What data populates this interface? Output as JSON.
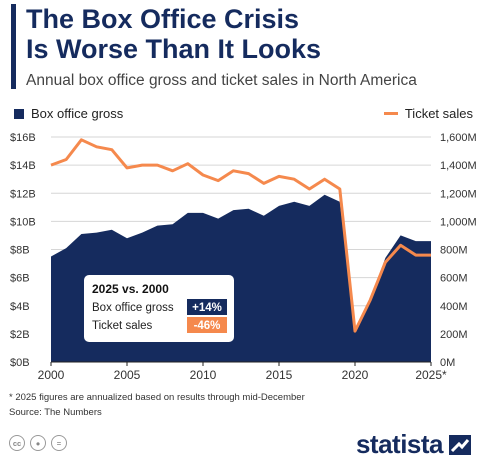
{
  "header": {
    "title_line1": "The Box Office Crisis",
    "title_line2": "Is Worse Than It Looks",
    "subtitle": "Annual box office gross and ticket sales in North America"
  },
  "legend": {
    "gross": "Box office gross",
    "tickets": "Ticket sales"
  },
  "chart_data": {
    "type": "area+line",
    "x": [
      2000,
      2001,
      2002,
      2003,
      2004,
      2005,
      2006,
      2007,
      2008,
      2009,
      2010,
      2011,
      2012,
      2013,
      2014,
      2015,
      2016,
      2017,
      2018,
      2019,
      2020,
      2021,
      2022,
      2023,
      2024,
      2025
    ],
    "series": [
      {
        "name": "Box office gross",
        "axis": "left",
        "unit": "USD",
        "values": [
          7.5,
          8.1,
          9.1,
          9.2,
          9.4,
          8.8,
          9.2,
          9.7,
          9.8,
          10.6,
          10.6,
          10.2,
          10.8,
          10.9,
          10.4,
          11.1,
          11.4,
          11.1,
          11.9,
          11.4,
          2.2,
          4.5,
          7.4,
          9.0,
          8.6,
          8.6
        ]
      },
      {
        "name": "Ticket sales",
        "axis": "right",
        "unit": "tickets",
        "values": [
          1400,
          1440,
          1580,
          1530,
          1510,
          1380,
          1400,
          1400,
          1360,
          1410,
          1330,
          1290,
          1360,
          1340,
          1270,
          1320,
          1300,
          1230,
          1300,
          1230,
          220,
          440,
          710,
          830,
          760,
          760
        ]
      }
    ],
    "left_axis": {
      "min": 0,
      "max": 16,
      "ticks": [
        "$0B",
        "$2B",
        "$4B",
        "$6B",
        "$8B",
        "$10B",
        "$12B",
        "$14B",
        "$16B"
      ]
    },
    "right_axis": {
      "min": 0,
      "max": 1600,
      "ticks": [
        "0M",
        "200M",
        "400M",
        "600M",
        "800M",
        "1,000M",
        "1,200M",
        "1,400M",
        "1,600M"
      ]
    },
    "x_ticks": [
      "2000",
      "2005",
      "2010",
      "2015",
      "2020",
      "2025*"
    ],
    "x_tick_values": [
      2000,
      2005,
      2010,
      2015,
      2020,
      2025
    ],
    "grid": true,
    "colors": {
      "gross": "#152b5e",
      "tickets": "#f5894d"
    },
    "callout": {
      "heading": "2025 vs. 2000",
      "rows": [
        {
          "label": "Box office gross",
          "value": "+14%",
          "color": "#152b5e"
        },
        {
          "label": "Ticket sales",
          "value": "-46%",
          "color": "#f5894d"
        }
      ]
    }
  },
  "footer": {
    "note": "* 2025 figures are annualized based on results through mid-December",
    "source": "Source: The Numbers",
    "brand": "statista"
  }
}
